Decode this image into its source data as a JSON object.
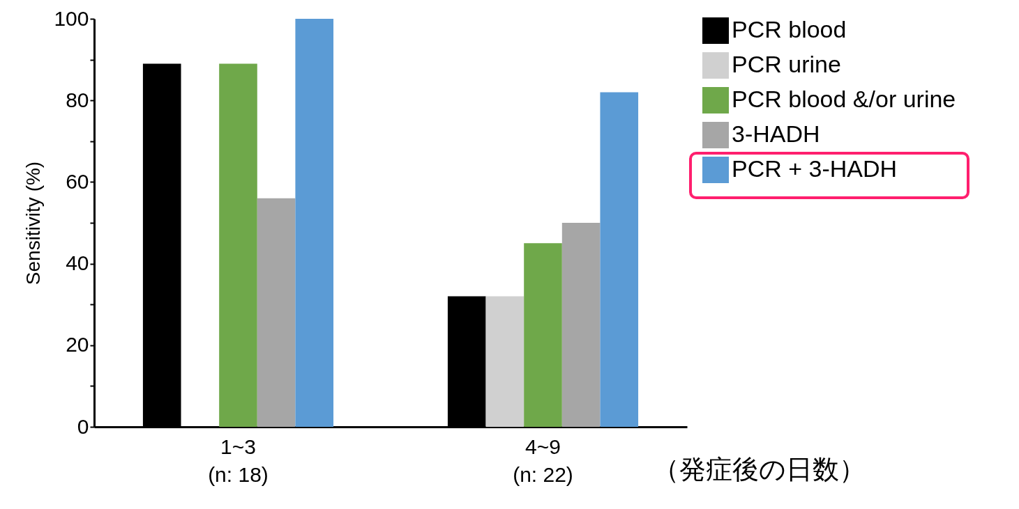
{
  "chart_data": {
    "type": "bar",
    "ylabel": "Sensitivity (%)",
    "xlabel": "（発症後の日数）",
    "categories": [
      "1~3\n(n: 18)",
      "4~9\n(n: 22)"
    ],
    "series": [
      {
        "name": "PCR blood",
        "color": "#000000",
        "values": [
          89,
          32
        ]
      },
      {
        "name": "PCR urine",
        "color": "#d0d0d0",
        "values": [
          null,
          32
        ]
      },
      {
        "name": "PCR blood &/or urine",
        "color": "#6fa84a",
        "values": [
          89,
          45
        ]
      },
      {
        "name": "3-HADH",
        "color": "#a6a6a6",
        "values": [
          56,
          50
        ]
      },
      {
        "name": "PCR + 3-HADH",
        "color": "#5b9bd5",
        "values": [
          100,
          82
        ]
      }
    ],
    "ylim": [
      0,
      100
    ],
    "yticks": [
      0,
      {
        "value": 10,
        "label": null
      },
      20,
      {
        "value": 30,
        "label": null
      },
      40,
      {
        "value": 50,
        "label": null
      },
      60,
      {
        "value": 70,
        "label": null
      },
      80,
      {
        "value": 90,
        "label": null
      },
      100
    ],
    "legend": "top right"
  }
}
